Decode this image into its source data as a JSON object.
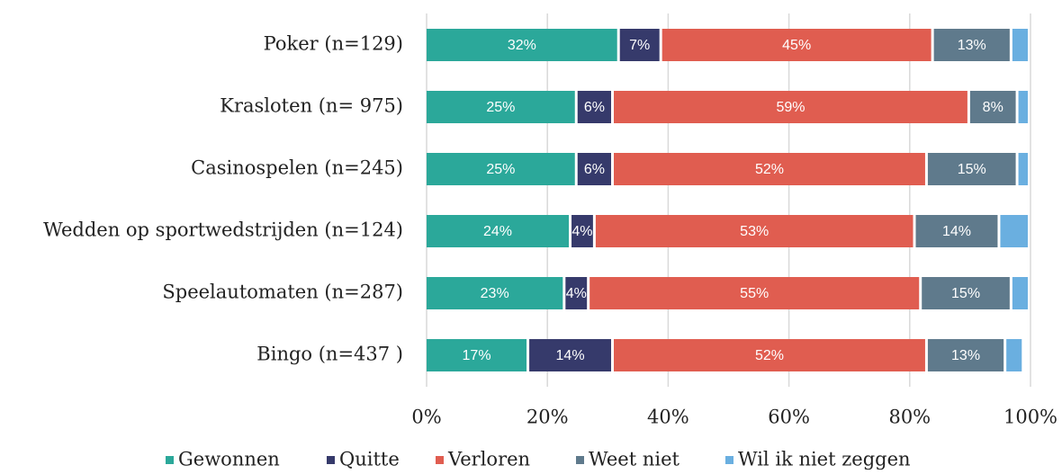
{
  "chart_data": {
    "type": "stacked-bar-horizontal",
    "categories": [
      "Poker (n=129)",
      "Krasloten (n= 975)",
      "Casinospelen (n=245)",
      "Wedden op sportwedstrijden (n=124)",
      "Speelautomaten (n=287)",
      "Bingo (n=437 )"
    ],
    "series": [
      {
        "name": "Gewonnen",
        "color": "#2ba89a",
        "values": [
          32,
          25,
          25,
          24,
          23,
          17
        ],
        "value_labels": [
          "32%",
          "25%",
          "25%",
          "24%",
          "23%",
          "17%"
        ]
      },
      {
        "name": "Quitte",
        "color": "#363a6b",
        "values": [
          7,
          6,
          6,
          4,
          4,
          14
        ],
        "value_labels": [
          "7%",
          "6%",
          "6%",
          "4%",
          "4%",
          "14%"
        ]
      },
      {
        "name": "Verloren",
        "color": "#e05d50",
        "values": [
          45,
          59,
          52,
          53,
          55,
          52
        ],
        "value_labels": [
          "45%",
          "59%",
          "52%",
          "53%",
          "55%",
          "52%"
        ]
      },
      {
        "name": "Weet niet",
        "color": "#5f7a8c",
        "values": [
          13,
          8,
          15,
          14,
          15,
          13
        ],
        "value_labels": [
          "13%",
          "8%",
          "15%",
          "14%",
          "15%",
          "13%"
        ]
      },
      {
        "name": "Wil ik niet zeggen",
        "color": "#6aafe0",
        "values": [
          3,
          2,
          2,
          5,
          3,
          3
        ]
      }
    ],
    "xlim": [
      0,
      100
    ],
    "xticks": [
      {
        "value": 0,
        "label": "0%"
      },
      {
        "value": 20,
        "label": "20%"
      },
      {
        "value": 40,
        "label": "40%"
      },
      {
        "value": 60,
        "label": "60%"
      },
      {
        "value": 80,
        "label": "80%"
      },
      {
        "value": 100,
        "label": "100%"
      }
    ],
    "grid": true,
    "legend": "bottom"
  }
}
